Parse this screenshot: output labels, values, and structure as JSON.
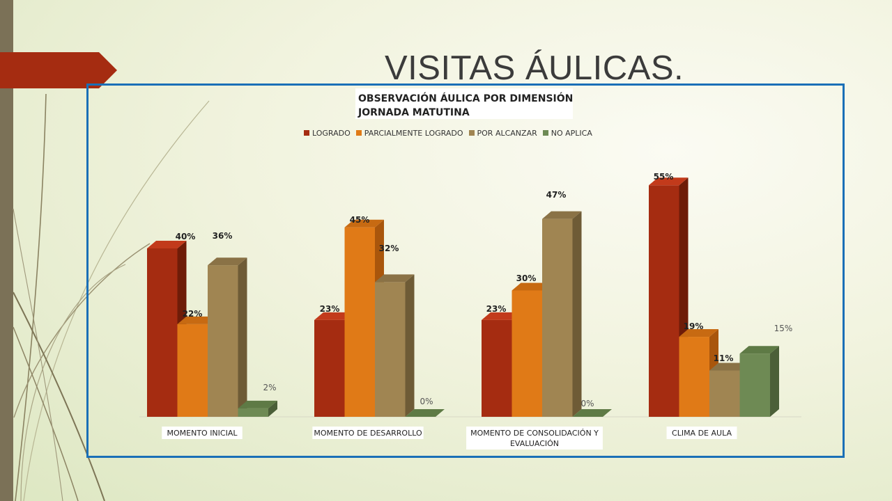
{
  "slide": {
    "title": "VISITAS ÁULICAS."
  },
  "chart_data": {
    "type": "bar",
    "title_line1": "OBSERVACIÓN ÁULICA POR DIMENSIÓN",
    "title_line2": "JORNADA MATUTINA",
    "categories": [
      {
        "line1": "MOMENTO INICIAL",
        "line2": ""
      },
      {
        "line1": "MOMENTO DE DESARROLLO",
        "line2": ""
      },
      {
        "line1": "MOMENTO DE CONSOLIDACIÓN Y",
        "line2": "EVALUACIÓN"
      },
      {
        "line1": "CLIMA DE AULA",
        "line2": ""
      }
    ],
    "series": [
      {
        "name": "LOGRADO",
        "values": [
          40,
          23,
          23,
          55
        ],
        "labels": [
          "40%",
          "23%",
          "23%",
          "55%"
        ],
        "color": "#a52c11",
        "side_color": "#6e1c08",
        "top_color": "#c23a1b"
      },
      {
        "name": "PARCIALMENTE LOGRADO",
        "values": [
          22,
          45,
          30,
          19
        ],
        "labels": [
          "22%",
          "45%",
          "30%",
          "19%"
        ],
        "color": "#e07a17",
        "side_color": "#a9560c",
        "top_color": "#c76a12"
      },
      {
        "name": "POR ALCANZAR",
        "values": [
          36,
          32,
          47,
          11
        ],
        "labels": [
          "36%",
          "32%",
          "47%",
          "11%"
        ],
        "color": "#a08552",
        "side_color": "#6e5b36",
        "top_color": "#8a7246"
      },
      {
        "name": "NO APLICA",
        "values": [
          2,
          0,
          0,
          15
        ],
        "labels": [
          "2%",
          "0%",
          "0%",
          "15%"
        ],
        "color": "#6e8a54",
        "side_color": "#4b5f38",
        "top_color": "#5e7a45"
      }
    ],
    "ylim": [
      0,
      60
    ],
    "legend_position": "top",
    "grid": false,
    "three_d": true
  }
}
